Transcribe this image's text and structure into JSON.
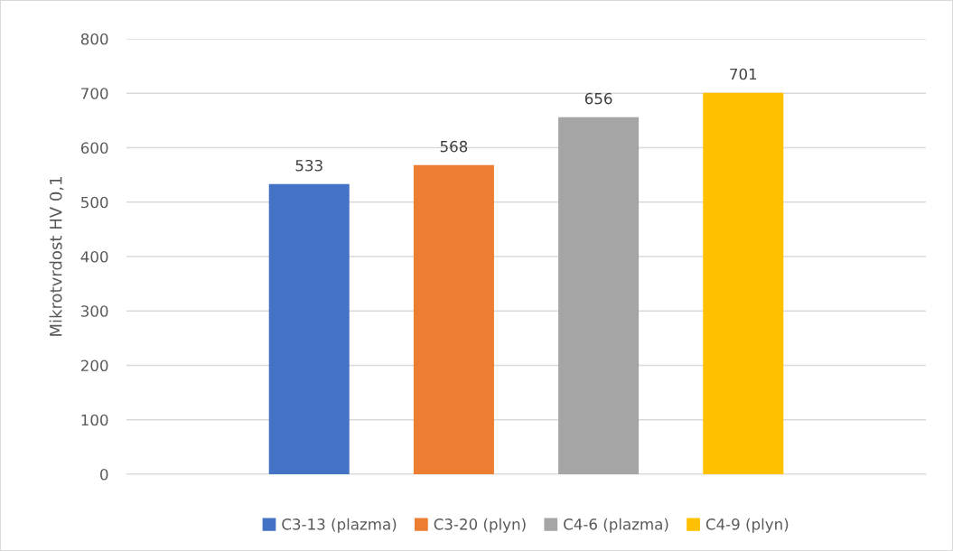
{
  "chart_data": {
    "type": "bar",
    "ylabel": "Mikrotvrdost HV 0,1",
    "categories": [
      null
    ],
    "series": [
      {
        "name": "C3-13 (plazma)",
        "color": "#4472c4",
        "values": [
          533
        ]
      },
      {
        "name": "C3-20 (plyn)",
        "color": "#ed7d31",
        "values": [
          568
        ]
      },
      {
        "name": "C4-6 (plazma)",
        "color": "#a5a5a5",
        "values": [
          656
        ]
      },
      {
        "name": "C4-9 (plyn)",
        "color": "#ffc000",
        "values": [
          701
        ]
      }
    ],
    "ylim": [
      0,
      800
    ],
    "yticks": [
      0,
      100,
      200,
      300,
      400,
      500,
      600,
      700,
      800
    ],
    "grid": "y",
    "legend": "bottom",
    "data_labels": true
  }
}
